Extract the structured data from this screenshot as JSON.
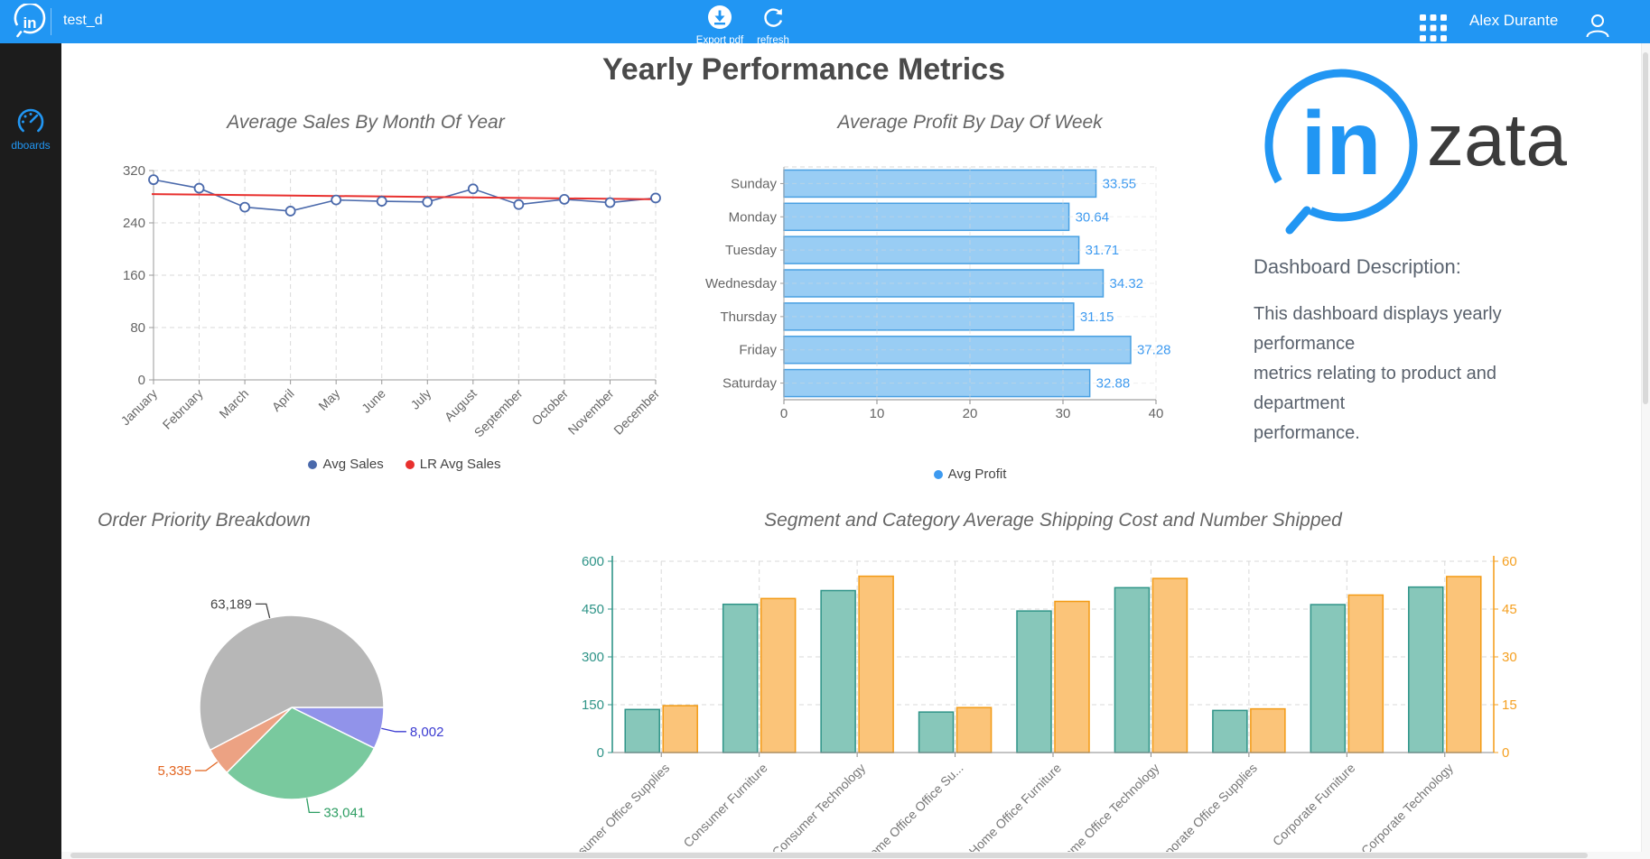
{
  "header": {
    "app_title": "test_d",
    "export_label": "Export pdf",
    "refresh_label": "refresh",
    "user_name": "Alex Durante",
    "brand_color": "#2196f3"
  },
  "sidebar": {
    "items": [
      {
        "label": "dboards"
      }
    ]
  },
  "page": {
    "title": "Yearly Performance Metrics"
  },
  "branding": {
    "logo_in": "in",
    "logo_zata": "zata"
  },
  "description": {
    "heading": "Dashboard Description:",
    "lines": [
      "This dashboard displays yearly performance",
      "metrics relating to product and department",
      "performance."
    ]
  },
  "chart_data": [
    {
      "id": "avg-sales-by-month",
      "type": "line",
      "title": "Average Sales By Month Of Year",
      "categories": [
        "January",
        "February",
        "March",
        "April",
        "May",
        "June",
        "July",
        "August",
        "September",
        "October",
        "November",
        "December"
      ],
      "series": [
        {
          "name": "Avg Sales",
          "color": "#4a69ab",
          "values": [
            306,
            293,
            264,
            258,
            275,
            273,
            272,
            292,
            268,
            276,
            271,
            278
          ]
        },
        {
          "name": "LR Avg Sales",
          "color": "#e8302e",
          "kind": "trend",
          "values": [
            284,
            276
          ]
        }
      ],
      "ylim": [
        0,
        320
      ],
      "yticks": [
        0,
        80,
        160,
        240,
        320
      ],
      "grid": true,
      "legend_position": "bottom"
    },
    {
      "id": "avg-profit-by-day",
      "type": "bar-horizontal",
      "title": "Average Profit By Day Of Week",
      "categories": [
        "Sunday",
        "Monday",
        "Tuesday",
        "Wednesday",
        "Thursday",
        "Friday",
        "Saturday"
      ],
      "series": [
        {
          "name": "Avg Profit",
          "fill": "#8ec8f3",
          "stroke": "#49a0e2",
          "label_color": "#3d9af0",
          "values": [
            33.55,
            30.64,
            31.71,
            34.32,
            31.15,
            37.28,
            32.88
          ]
        }
      ],
      "xlim": [
        0,
        40
      ],
      "xticks": [
        0,
        10,
        20,
        30,
        40
      ],
      "grid": true,
      "legend_position": "bottom"
    },
    {
      "id": "order-priority",
      "type": "pie",
      "title": "Order Priority Breakdown",
      "start_angle_deg": 0,
      "slices": [
        {
          "label": "8,002",
          "value": 8002,
          "color": "#9193ea",
          "label_color": "#3b3bd1"
        },
        {
          "label": "33,041",
          "value": 33041,
          "color": "#79c99e",
          "label_color": "#2e9e63"
        },
        {
          "label": "5,335",
          "value": 5335,
          "color": "#eca283",
          "label_color": "#e2641f"
        },
        {
          "label": "63,189",
          "value": 63189,
          "color": "#b7b7b7",
          "label_color": "#444444"
        }
      ]
    },
    {
      "id": "segment-category",
      "type": "bar-grouped-dual-axis",
      "title": "Segment and Category Average Shipping Cost and Number Shipped",
      "categories": [
        "Consumer Office Supplies",
        "Consumer Furniture",
        "Consumer Technology",
        "Home Office Office Su...",
        "Home Office Furniture",
        "Home Office Technology",
        "Corporate Office Supplies",
        "Corporate Furniture",
        "Corporate Technology"
      ],
      "series": [
        {
          "name": "Number Shipped",
          "axis": "left",
          "fill": "#87c7ba",
          "stroke": "#2f9488",
          "values": [
            135,
            465,
            508,
            127,
            444,
            517,
            132,
            464,
            519
          ]
        },
        {
          "name": "Average Shipping Cost",
          "axis": "right",
          "fill": "#fbc479",
          "stroke": "#f39b16",
          "values": [
            14.7,
            48.3,
            55.3,
            14.1,
            47.4,
            54.6,
            13.7,
            49.4,
            55.2
          ]
        }
      ],
      "left_axis": {
        "lim": [
          0,
          600
        ],
        "ticks": [
          0,
          150,
          300,
          450,
          600
        ],
        "color": "#2f9488"
      },
      "right_axis": {
        "lim": [
          0,
          60
        ],
        "ticks": [
          0,
          15,
          30,
          45,
          60
        ],
        "color": "#f5a021"
      },
      "grid": true
    }
  ]
}
